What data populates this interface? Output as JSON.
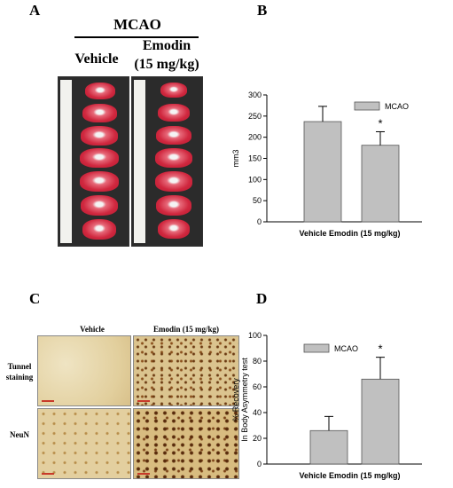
{
  "panelA": {
    "letter": "A",
    "group_label": "MCAO",
    "vehicle_label": "Vehicle",
    "emodin_label_line1": "Emodin",
    "emodin_label_line2": "(15 mg/kg)"
  },
  "panelB": {
    "letter": "B"
  },
  "panelC": {
    "letter": "C",
    "col1": "Vehicle",
    "col2": "Emodin (15 mg/kg)",
    "row1_line1": "Tunnel",
    "row1_line2": "staining",
    "row2": "NeuN"
  },
  "panelD": {
    "letter": "D"
  },
  "chart_data": [
    {
      "type": "bar",
      "categories": [
        "Vehicle",
        "Emodin (15 mg/kg)"
      ],
      "category_label": "Vehicle Emodin (15 mg/kg)",
      "series": [
        {
          "name": "MCAO",
          "values": [
            237,
            181
          ],
          "errors": [
            36,
            32
          ]
        }
      ],
      "ylabel": "mm3",
      "ylim": [
        0,
        300
      ],
      "yticks": [
        "0",
        "50",
        "100",
        "150",
        "200",
        "250",
        "300"
      ],
      "annotation": "*",
      "bar_color": "#c0c0c0"
    },
    {
      "type": "bar",
      "categories": [
        "Vehicle",
        "Emodin (15 mg/kg)"
      ],
      "category_label": "Vehicle Emodin (15 mg/kg)",
      "series": [
        {
          "name": "MCAO",
          "values": [
            26,
            66
          ],
          "errors": [
            11,
            17
          ]
        }
      ],
      "ylabel_line1": "% Recovery",
      "ylabel_line2": "In Body Asymmetry test",
      "ylim": [
        0,
        100
      ],
      "yticks": [
        "0",
        "20",
        "40",
        "60",
        "80",
        "100"
      ],
      "annotation": "*",
      "bar_color": "#c0c0c0"
    }
  ]
}
